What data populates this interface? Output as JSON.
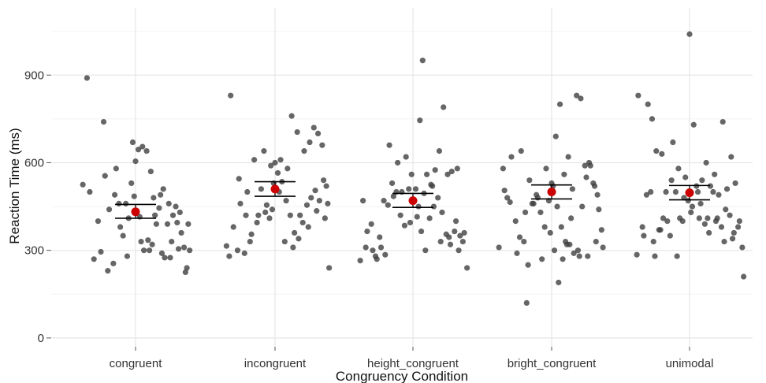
{
  "chart_data": {
    "type": "scatter",
    "xlabel": "Congruency Condition",
    "ylabel": "Reaction Time (ms)",
    "categories": [
      "congruent",
      "incongruent",
      "height_congruent",
      "bright_congruent",
      "unimodal"
    ],
    "yticks": [
      0,
      300,
      600,
      900
    ],
    "ylim": [
      -30,
      1130
    ],
    "grid": true,
    "point_color": "#404040",
    "mean_color": "#cc0000",
    "means": [
      432,
      510,
      470,
      500,
      497
    ],
    "error_bars": [
      {
        "lower": 410,
        "upper": 457
      },
      {
        "lower": 485,
        "upper": 535
      },
      {
        "lower": 447,
        "upper": 495
      },
      {
        "lower": 476,
        "upper": 524
      },
      {
        "lower": 473,
        "upper": 522
      }
    ],
    "points": [
      [
        [
          -0.38,
          525
        ],
        [
          -0.33,
          500
        ],
        [
          -0.27,
          400
        ],
        [
          -0.22,
          555
        ],
        [
          -0.19,
          440
        ],
        [
          -0.15,
          490
        ],
        [
          -0.12,
          460
        ],
        [
          -0.09,
          350
        ],
        [
          -0.06,
          280
        ],
        [
          -0.03,
          530
        ],
        [
          0.0,
          605
        ],
        [
          0.03,
          415
        ],
        [
          0.06,
          300
        ],
        [
          0.09,
          335
        ],
        [
          0.12,
          320
        ],
        [
          0.15,
          390
        ],
        [
          0.18,
          490
        ],
        [
          0.21,
          275
        ],
        [
          0.24,
          460
        ],
        [
          0.27,
          420
        ],
        [
          0.3,
          395
        ],
        [
          0.33,
          360
        ],
        [
          0.36,
          225
        ],
        [
          0.39,
          300
        ],
        [
          -0.35,
          890
        ],
        [
          -0.23,
          740
        ],
        [
          -0.14,
          580
        ],
        [
          -0.07,
          460
        ],
        [
          -0.02,
          670
        ],
        [
          0.02,
          645
        ],
        [
          0.05,
          655
        ],
        [
          0.08,
          640
        ],
        [
          0.11,
          570
        ],
        [
          0.14,
          420
        ],
        [
          0.17,
          445
        ],
        [
          0.2,
          510
        ],
        [
          0.23,
          390
        ],
        [
          0.26,
          330
        ],
        [
          0.29,
          450
        ],
        [
          0.32,
          430
        ],
        [
          0.35,
          310
        ],
        [
          0.38,
          390
        ],
        [
          -0.3,
          270
        ],
        [
          -0.25,
          295
        ],
        [
          -0.2,
          230
        ],
        [
          -0.16,
          255
        ],
        [
          -0.11,
          380
        ],
        [
          -0.05,
          410
        ],
        [
          -0.01,
          485
        ],
        [
          0.04,
          330
        ],
        [
          0.1,
          300
        ],
        [
          0.13,
          480
        ],
        [
          0.19,
          290
        ],
        [
          0.25,
          275
        ],
        [
          0.31,
          305
        ],
        [
          0.37,
          240
        ]
      ],
      [
        [
          -0.35,
          315
        ],
        [
          -0.3,
          380
        ],
        [
          -0.25,
          460
        ],
        [
          -0.21,
          420
        ],
        [
          -0.17,
          355
        ],
        [
          -0.13,
          395
        ],
        [
          -0.1,
          510
        ],
        [
          -0.07,
          430
        ],
        [
          -0.04,
          410
        ],
        [
          -0.01,
          530
        ],
        [
          0.02,
          565
        ],
        [
          0.05,
          535
        ],
        [
          0.08,
          470
        ],
        [
          0.11,
          420
        ],
        [
          0.14,
          360
        ],
        [
          0.17,
          340
        ],
        [
          0.2,
          395
        ],
        [
          0.23,
          455
        ],
        [
          0.26,
          480
        ],
        [
          0.29,
          505
        ],
        [
          0.32,
          470
        ],
        [
          0.35,
          540
        ],
        [
          0.38,
          460
        ],
        [
          -0.32,
          830
        ],
        [
          -0.26,
          545
        ],
        [
          -0.2,
          500
        ],
        [
          -0.15,
          610
        ],
        [
          -0.08,
          640
        ],
        [
          -0.03,
          590
        ],
        [
          0.0,
          600
        ],
        [
          0.04,
          610
        ],
        [
          0.09,
          580
        ],
        [
          0.12,
          760
        ],
        [
          0.16,
          705
        ],
        [
          0.21,
          640
        ],
        [
          0.25,
          670
        ],
        [
          0.28,
          720
        ],
        [
          0.31,
          700
        ],
        [
          0.34,
          660
        ],
        [
          0.37,
          520
        ],
        [
          -0.33,
          280
        ],
        [
          -0.27,
          300
        ],
        [
          -0.22,
          290
        ],
        [
          -0.18,
          330
        ],
        [
          -0.12,
          420
        ],
        [
          -0.06,
          455
        ],
        [
          -0.02,
          440
        ],
        [
          0.03,
          500
        ],
        [
          0.07,
          330
        ],
        [
          0.13,
          310
        ],
        [
          0.18,
          420
        ],
        [
          0.24,
          380
        ],
        [
          0.3,
          435
        ],
        [
          0.36,
          410
        ],
        [
          0.39,
          240
        ]
      ],
      [
        [
          -0.38,
          265
        ],
        [
          -0.34,
          310
        ],
        [
          -0.3,
          390
        ],
        [
          -0.27,
          280
        ],
        [
          -0.24,
          345
        ],
        [
          -0.21,
          470
        ],
        [
          -0.18,
          455
        ],
        [
          -0.15,
          530
        ],
        [
          -0.12,
          500
        ],
        [
          -0.09,
          420
        ],
        [
          -0.06,
          385
        ],
        [
          -0.03,
          510
        ],
        [
          0.0,
          470
        ],
        [
          0.03,
          415
        ],
        [
          0.06,
          365
        ],
        [
          0.09,
          300
        ],
        [
          0.12,
          410
        ],
        [
          0.15,
          450
        ],
        [
          0.18,
          480
        ],
        [
          0.21,
          430
        ],
        [
          0.24,
          355
        ],
        [
          0.27,
          320
        ],
        [
          0.3,
          365
        ],
        [
          0.33,
          300
        ],
        [
          0.36,
          330
        ],
        [
          0.39,
          240
        ],
        [
          -0.36,
          470
        ],
        [
          -0.29,
          300
        ],
        [
          -0.23,
          310
        ],
        [
          -0.17,
          660
        ],
        [
          -0.11,
          600
        ],
        [
          -0.05,
          620
        ],
        [
          -0.01,
          560
        ],
        [
          0.02,
          510
        ],
        [
          0.05,
          745
        ],
        [
          0.07,
          950
        ],
        [
          0.1,
          560
        ],
        [
          0.13,
          525
        ],
        [
          0.16,
          575
        ],
        [
          0.19,
          640
        ],
        [
          0.22,
          790
        ],
        [
          0.25,
          560
        ],
        [
          0.28,
          570
        ],
        [
          0.31,
          400
        ],
        [
          0.34,
          350
        ],
        [
          -0.33,
          365
        ],
        [
          -0.26,
          270
        ],
        [
          -0.2,
          285
        ],
        [
          -0.14,
          485
        ],
        [
          -0.08,
          500
        ],
        [
          -0.02,
          395
        ],
        [
          0.04,
          450
        ],
        [
          0.08,
          495
        ],
        [
          0.14,
          520
        ],
        [
          0.2,
          330
        ],
        [
          0.26,
          345
        ],
        [
          0.32,
          580
        ],
        [
          0.37,
          360
        ]
      ],
      [
        [
          -0.38,
          310
        ],
        [
          -0.34,
          505
        ],
        [
          -0.3,
          465
        ],
        [
          -0.26,
          400
        ],
        [
          -0.23,
          345
        ],
        [
          -0.2,
          330
        ],
        [
          -0.17,
          250
        ],
        [
          -0.14,
          460
        ],
        [
          -0.11,
          490
        ],
        [
          -0.08,
          430
        ],
        [
          -0.05,
          380
        ],
        [
          -0.02,
          470
        ],
        [
          0.01,
          520
        ],
        [
          0.04,
          450
        ],
        [
          0.07,
          380
        ],
        [
          0.1,
          330
        ],
        [
          0.13,
          320
        ],
        [
          0.16,
          290
        ],
        [
          0.19,
          300
        ],
        [
          0.22,
          450
        ],
        [
          0.25,
          550
        ],
        [
          0.28,
          590
        ],
        [
          0.31,
          520
        ],
        [
          0.34,
          440
        ],
        [
          0.37,
          310
        ],
        [
          -0.35,
          580
        ],
        [
          -0.29,
          620
        ],
        [
          -0.22,
          640
        ],
        [
          -0.16,
          540
        ],
        [
          -0.1,
          480
        ],
        [
          -0.04,
          580
        ],
        [
          0.0,
          530
        ],
        [
          0.03,
          690
        ],
        [
          0.06,
          800
        ],
        [
          0.09,
          560
        ],
        [
          0.12,
          620
        ],
        [
          0.15,
          510
        ],
        [
          0.18,
          830
        ],
        [
          0.21,
          820
        ],
        [
          0.24,
          590
        ],
        [
          0.27,
          600
        ],
        [
          0.3,
          530
        ],
        [
          0.33,
          490
        ],
        [
          0.36,
          370
        ],
        [
          -0.32,
          480
        ],
        [
          -0.25,
          290
        ],
        [
          -0.19,
          430
        ],
        [
          -0.13,
          460
        ],
        [
          -0.07,
          270
        ],
        [
          -0.01,
          360
        ],
        [
          0.02,
          300
        ],
        [
          0.05,
          190
        ],
        [
          0.08,
          270
        ],
        [
          0.11,
          320
        ],
        [
          0.14,
          410
        ],
        [
          0.2,
          280
        ],
        [
          0.26,
          280
        ],
        [
          0.32,
          330
        ],
        [
          -0.18,
          120
        ]
      ],
      [
        [
          -0.38,
          285
        ],
        [
          -0.34,
          380
        ],
        [
          -0.31,
          490
        ],
        [
          -0.28,
          500
        ],
        [
          -0.25,
          280
        ],
        [
          -0.22,
          370
        ],
        [
          -0.19,
          410
        ],
        [
          -0.16,
          400
        ],
        [
          -0.13,
          540
        ],
        [
          -0.1,
          500
        ],
        [
          -0.07,
          410
        ],
        [
          -0.04,
          480
        ],
        [
          -0.01,
          470
        ],
        [
          0.02,
          450
        ],
        [
          0.05,
          520
        ],
        [
          0.08,
          460
        ],
        [
          0.11,
          390
        ],
        [
          0.14,
          360
        ],
        [
          0.17,
          500
        ],
        [
          0.2,
          410
        ],
        [
          0.23,
          380
        ],
        [
          0.26,
          440
        ],
        [
          0.29,
          420
        ],
        [
          0.32,
          360
        ],
        [
          0.35,
          380
        ],
        [
          0.38,
          310
        ],
        [
          -0.37,
          830
        ],
        [
          -0.3,
          800
        ],
        [
          -0.27,
          750
        ],
        [
          -0.24,
          640
        ],
        [
          -0.2,
          630
        ],
        [
          -0.17,
          500
        ],
        [
          -0.12,
          670
        ],
        [
          -0.08,
          580
        ],
        [
          -0.03,
          550
        ],
        [
          0.0,
          1040
        ],
        [
          0.03,
          730
        ],
        [
          0.06,
          500
        ],
        [
          0.09,
          540
        ],
        [
          0.12,
          600
        ],
        [
          0.15,
          520
        ],
        [
          0.18,
          560
        ],
        [
          0.21,
          490
        ],
        [
          0.24,
          740
        ],
        [
          0.27,
          510
        ],
        [
          0.3,
          620
        ],
        [
          0.33,
          530
        ],
        [
          0.36,
          400
        ],
        [
          0.39,
          210
        ],
        [
          -0.33,
          350
        ],
        [
          -0.26,
          330
        ],
        [
          -0.21,
          370
        ],
        [
          -0.14,
          350
        ],
        [
          -0.09,
          280
        ],
        [
          -0.05,
          400
        ],
        [
          0.01,
          430
        ],
        [
          0.07,
          410
        ],
        [
          0.13,
          410
        ],
        [
          0.19,
          400
        ],
        [
          0.25,
          330
        ],
        [
          0.31,
          340
        ]
      ]
    ]
  }
}
